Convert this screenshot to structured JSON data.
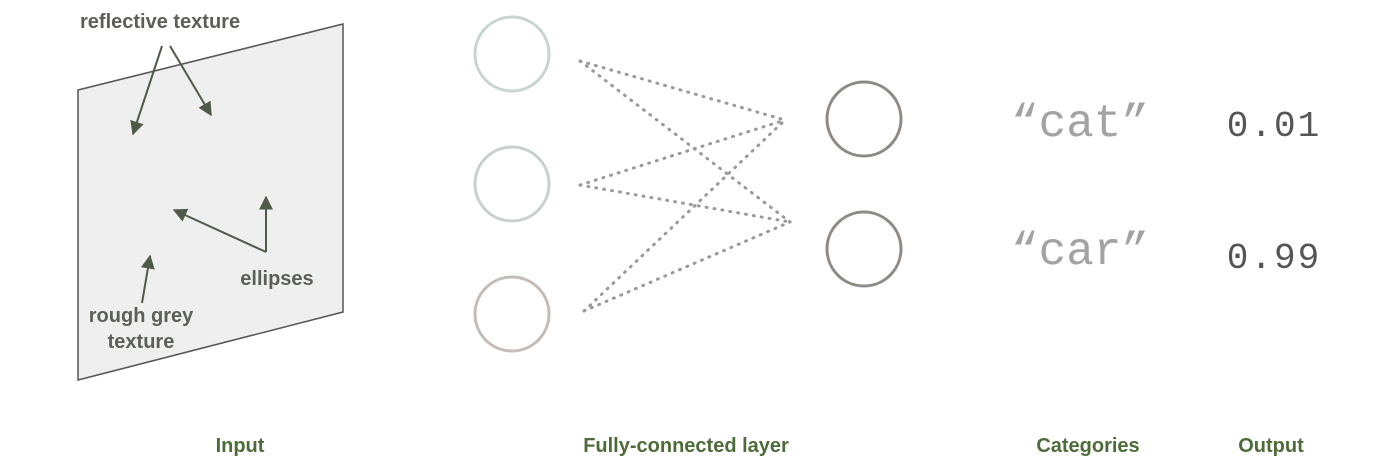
{
  "input": {
    "annotations": {
      "reflective": "reflective texture",
      "ellipses": "ellipses",
      "rough_line1": "rough grey",
      "rough_line2": "texture"
    }
  },
  "categories": [
    {
      "label": "“cat”",
      "output": "0.01"
    },
    {
      "label": "“car”",
      "output": "0.99"
    }
  ],
  "captions": {
    "input": "Input",
    "layer": "Fully-connected layer",
    "categories": "Categories",
    "output": "Output"
  },
  "colors": {
    "panel_fill": "#efefef",
    "arrow": "#4f5a49",
    "dots": "#9a9a9a",
    "input_neurons": [
      "#c7d4d0",
      "#c6d1ce",
      "#c3bcb7"
    ],
    "output_neurons": "#8f8a86"
  }
}
